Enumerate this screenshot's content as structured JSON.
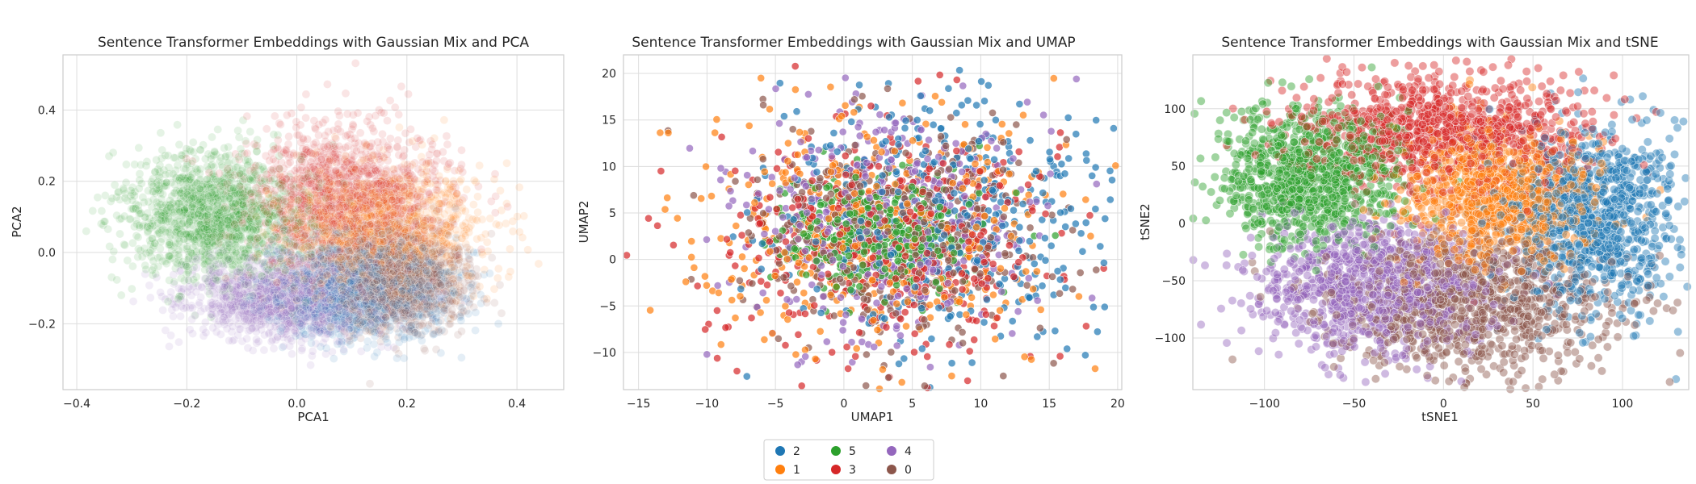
{
  "chart_data": [
    {
      "type": "scatter",
      "title": "Sentence Transformer Embeddings with Gaussian Mix and PCA",
      "xlabel": "PCA1",
      "ylabel": "PCA2",
      "xlim": [
        -0.425,
        0.485
      ],
      "ylim": [
        -0.385,
        0.555
      ],
      "xticks": [
        -0.4,
        -0.2,
        0.0,
        0.2,
        0.4
      ],
      "xtick_labels": [
        "−0.4",
        "−0.2",
        "0.0",
        "0.2",
        "0.4"
      ],
      "yticks": [
        -0.2,
        0.0,
        0.2,
        0.4
      ],
      "ytick_labels": [
        "−0.2",
        "0.0",
        "0.2",
        "0.4"
      ],
      "grid": true,
      "point_alpha": 0.12,
      "clusters": [
        {
          "name": "2",
          "center": [
            0.12,
            -0.1
          ],
          "spread": [
            0.08,
            0.07
          ]
        },
        {
          "name": "1",
          "center": [
            0.15,
            0.06
          ],
          "spread": [
            0.09,
            0.09
          ]
        },
        {
          "name": "5",
          "center": [
            -0.15,
            0.1
          ],
          "spread": [
            0.08,
            0.09
          ]
        },
        {
          "name": "3",
          "center": [
            0.08,
            0.15
          ],
          "spread": [
            0.09,
            0.1
          ]
        },
        {
          "name": "4",
          "center": [
            -0.02,
            -0.13
          ],
          "spread": [
            0.09,
            0.06
          ]
        },
        {
          "name": "0",
          "center": [
            0.18,
            -0.08
          ],
          "spread": [
            0.06,
            0.07
          ]
        }
      ]
    },
    {
      "type": "scatter",
      "title": "Sentence Transformer Embeddings with Gaussian Mix and UMAP",
      "xlabel": "UMAP1",
      "ylabel": "UMAP2",
      "xlim": [
        -16.1,
        20.3
      ],
      "ylim": [
        -14.0,
        22.0
      ],
      "xticks": [
        -15,
        -10,
        -5,
        0,
        5,
        10,
        15,
        20
      ],
      "xtick_labels": [
        "−15",
        "−10",
        "−5",
        "0",
        "5",
        "10",
        "15",
        "20"
      ],
      "yticks": [
        -10,
        -5,
        0,
        5,
        10,
        15,
        20
      ],
      "ytick_labels": [
        "−10",
        "−5",
        "0",
        "5",
        "10",
        "15",
        "20"
      ],
      "grid": true,
      "point_alpha": 0.7,
      "clusters": [
        {
          "name": "2",
          "center": [
            7.5,
            4.5
          ],
          "spread": [
            6.0,
            6.5
          ]
        },
        {
          "name": "1",
          "center": [
            2.0,
            3.0
          ],
          "spread": [
            6.5,
            6.5
          ]
        },
        {
          "name": "5",
          "center": [
            2.0,
            2.5
          ],
          "spread": [
            3.5,
            3.0
          ]
        },
        {
          "name": "3",
          "center": [
            3.5,
            2.0
          ],
          "spread": [
            6.5,
            6.5
          ]
        },
        {
          "name": "4",
          "center": [
            3.0,
            4.5
          ],
          "spread": [
            5.5,
            6.0
          ]
        },
        {
          "name": "0",
          "center": [
            4.0,
            3.0
          ],
          "spread": [
            5.5,
            6.0
          ]
        }
      ]
    },
    {
      "type": "scatter",
      "title": "Sentence Transformer Embeddings with Gaussian Mix and tSNE",
      "xlabel": "tSNE1",
      "ylabel": "tSNE2",
      "xlim": [
        -140,
        137
      ],
      "ylim": [
        -145,
        147
      ],
      "xticks": [
        -100,
        -50,
        0,
        50,
        100
      ],
      "xtick_labels": [
        "−100",
        "−50",
        "0",
        "50",
        "100"
      ],
      "yticks": [
        -100,
        -50,
        0,
        50,
        100
      ],
      "ytick_labels": [
        "−100",
        "−50",
        "0",
        "50",
        "100"
      ],
      "grid": true,
      "point_alpha": 0.45,
      "clusters": [
        {
          "name": "2",
          "center": [
            85,
            5
          ],
          "spread": [
            25,
            40
          ]
        },
        {
          "name": "1",
          "center": [
            30,
            25
          ],
          "spread": [
            25,
            30
          ]
        },
        {
          "name": "5",
          "center": [
            -75,
            40
          ],
          "spread": [
            25,
            30
          ]
        },
        {
          "name": "3",
          "center": [
            0,
            80
          ],
          "spread": [
            40,
            25
          ]
        },
        {
          "name": "4",
          "center": [
            -40,
            -55
          ],
          "spread": [
            35,
            30
          ]
        },
        {
          "name": "0",
          "center": [
            15,
            -70
          ],
          "spread": [
            40,
            30
          ]
        }
      ]
    }
  ],
  "legend": {
    "placement": "bottom-center",
    "entries": [
      {
        "label": "2",
        "color": "#1f77b4"
      },
      {
        "label": "1",
        "color": "#ff7f0e"
      },
      {
        "label": "5",
        "color": "#2ca02c"
      },
      {
        "label": "3",
        "color": "#d62728"
      },
      {
        "label": "4",
        "color": "#9467bd"
      },
      {
        "label": "0",
        "color": "#8c564b"
      }
    ]
  },
  "colors": {
    "2": "#1f77b4",
    "1": "#ff7f0e",
    "5": "#2ca02c",
    "3": "#d62728",
    "4": "#9467bd",
    "0": "#8c564b"
  }
}
